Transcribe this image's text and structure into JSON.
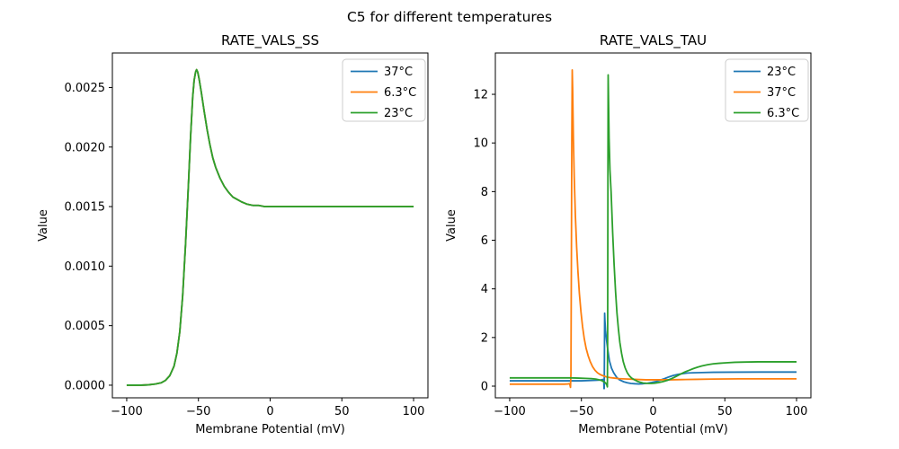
{
  "figure": {
    "title": "C5 for different temperatures",
    "background": "#ffffff"
  },
  "colors": {
    "blue": "#1f77b4",
    "orange": "#ff7f0e",
    "green": "#2ca02c",
    "legend_border": "#cccccc",
    "axes": "#000000"
  },
  "chart_data": [
    {
      "type": "line",
      "title": "RATE_VALS_SS",
      "xlabel": "Membrane Potential (mV)",
      "ylabel": "Value",
      "xlim": [
        -110,
        110
      ],
      "ylim": [
        -0.000106,
        0.00279
      ],
      "grid": false,
      "legend_position": "upper-right",
      "xticks": {
        "values": [
          -100,
          -50,
          0,
          50,
          100
        ],
        "labels": [
          "−100",
          "−50",
          "0",
          "50",
          "100"
        ]
      },
      "yticks": {
        "values": [
          0.0,
          0.0005,
          0.001,
          0.0015,
          0.002,
          0.0025
        ],
        "labels": [
          "0.0000",
          "0.0005",
          "0.0010",
          "0.0015",
          "0.0020",
          "0.0025"
        ]
      },
      "note": "All three temperature curves coincide exactly; the green 23°C curve drawn last is the visible one. Peak ≈ 0.00265 at −51 mV, plateau ≈ 0.0015 for V ≥ −10 mV.",
      "shared_points": {
        "ss": [
          [
            -100,
            0
          ],
          [
            -90,
            0
          ],
          [
            -85,
            3e-06
          ],
          [
            -80,
            1e-05
          ],
          [
            -76,
            2e-05
          ],
          [
            -73,
            4e-05
          ],
          [
            -70,
            8e-05
          ],
          [
            -67,
            0.00016
          ],
          [
            -65,
            0.00027
          ],
          [
            -63,
            0.00045
          ],
          [
            -61,
            0.00075
          ],
          [
            -59,
            0.00118
          ],
          [
            -57,
            0.00168
          ],
          [
            -55.5,
            0.00208
          ],
          [
            -54,
            0.00242
          ],
          [
            -53,
            0.00256
          ],
          [
            -52,
            0.00263
          ],
          [
            -51.3,
            0.00265
          ],
          [
            -50.5,
            0.00263
          ],
          [
            -49.5,
            0.00257
          ],
          [
            -48,
            0.00246
          ],
          [
            -46,
            0.0023
          ],
          [
            -44,
            0.00215
          ],
          [
            -42,
            0.00202
          ],
          [
            -40,
            0.00191
          ],
          [
            -38,
            0.00183
          ],
          [
            -35,
            0.00174
          ],
          [
            -32,
            0.00167
          ],
          [
            -29,
            0.00162
          ],
          [
            -26,
            0.00158
          ],
          [
            -23,
            0.00156
          ],
          [
            -20,
            0.00154
          ],
          [
            -16,
            0.00152
          ],
          [
            -12,
            0.00151
          ],
          [
            -8,
            0.00151
          ],
          [
            -4,
            0.0015
          ],
          [
            0,
            0.0015
          ],
          [
            20,
            0.0015
          ],
          [
            40,
            0.0015
          ],
          [
            60,
            0.0015
          ],
          [
            80,
            0.0015
          ],
          [
            100,
            0.0015
          ]
        ]
      },
      "series": [
        {
          "name": "37°C",
          "color": "#1f77b4",
          "points_key": "ss"
        },
        {
          "name": "6.3°C",
          "color": "#ff7f0e",
          "points_key": "ss"
        },
        {
          "name": "23°C",
          "color": "#2ca02c",
          "points_key": "ss"
        }
      ]
    },
    {
      "type": "line",
      "title": "RATE_VALS_TAU",
      "xlabel": "Membrane Potential (mV)",
      "ylabel": "Value",
      "xlim": [
        -110,
        110
      ],
      "ylim": [
        -0.48,
        13.7
      ],
      "grid": false,
      "legend_position": "upper-right",
      "xticks": {
        "values": [
          -100,
          -50,
          0,
          50,
          100
        ],
        "labels": [
          "−100",
          "−50",
          "0",
          "50",
          "100"
        ]
      },
      "yticks": {
        "values": [
          0,
          2,
          4,
          6,
          8,
          10,
          12
        ],
        "labels": [
          "0",
          "2",
          "4",
          "6",
          "8",
          "10",
          "12"
        ]
      },
      "note": "Narrow resonance spikes: orange 37°C peaks ≈ 13.0 at ≈ −56 mV; green 6.3°C peaks ≈ 12.8 at ≈ −31.4 mV; blue 23°C peaks ≈ 3.0 at ≈ −34 mV. Right-side plateaus: green ≈ 1.0, blue ≈ 0.58, orange ≈ 0.3.",
      "series": [
        {
          "name": "23°C",
          "color": "#1f77b4",
          "points": [
            [
              -100,
              0.22
            ],
            [
              -80,
              0.22
            ],
            [
              -60,
              0.22
            ],
            [
              -50,
              0.22
            ],
            [
              -44,
              0.23
            ],
            [
              -40,
              0.24
            ],
            [
              -37,
              0.25
            ],
            [
              -35.2,
              0.27
            ],
            [
              -34.4,
              0.28
            ],
            [
              -34.25,
              -0.1
            ],
            [
              -34.1,
              -0.1
            ],
            [
              -33.95,
              1.2
            ],
            [
              -33.8,
              3.0
            ],
            [
              -33.6,
              2.7
            ],
            [
              -33.2,
              2.3
            ],
            [
              -32.5,
              1.9
            ],
            [
              -31.6,
              1.5
            ],
            [
              -30.5,
              1.05
            ],
            [
              -29,
              0.74
            ],
            [
              -27.5,
              0.55
            ],
            [
              -25.5,
              0.37
            ],
            [
              -23.5,
              0.26
            ],
            [
              -20.5,
              0.18
            ],
            [
              -18,
              0.14
            ],
            [
              -15.5,
              0.11
            ],
            [
              -13,
              0.1
            ],
            [
              -10,
              0.09
            ],
            [
              -7,
              0.1
            ],
            [
              -4,
              0.12
            ],
            [
              -1,
              0.15
            ],
            [
              2,
              0.19
            ],
            [
              5,
              0.25
            ],
            [
              8,
              0.31
            ],
            [
              11,
              0.38
            ],
            [
              14,
              0.44
            ],
            [
              17,
              0.48
            ],
            [
              20,
              0.51
            ],
            [
              24,
              0.54
            ],
            [
              28,
              0.55
            ],
            [
              34,
              0.56
            ],
            [
              42,
              0.57
            ],
            [
              55,
              0.575
            ],
            [
              75,
              0.58
            ],
            [
              100,
              0.58
            ]
          ]
        },
        {
          "name": "37°C",
          "color": "#ff7f0e",
          "points": [
            [
              -100,
              0.08
            ],
            [
              -85,
              0.08
            ],
            [
              -70,
              0.08
            ],
            [
              -62,
              0.08
            ],
            [
              -59.5,
              0.09
            ],
            [
              -58.2,
              0.1
            ],
            [
              -57.6,
              -0.05
            ],
            [
              -57.3,
              0.5
            ],
            [
              -57,
              5.0
            ],
            [
              -56.7,
              10.0
            ],
            [
              -56.4,
              13.0
            ],
            [
              -56.1,
              12.2
            ],
            [
              -55.6,
              10.2
            ],
            [
              -55,
              8.6
            ],
            [
              -54.2,
              7.0
            ],
            [
              -53.3,
              5.7
            ],
            [
              -52.4,
              4.7
            ],
            [
              -51.4,
              3.8
            ],
            [
              -50.3,
              3.05
            ],
            [
              -49.2,
              2.45
            ],
            [
              -48,
              1.95
            ],
            [
              -46.7,
              1.55
            ],
            [
              -45.3,
              1.25
            ],
            [
              -43.8,
              1.0
            ],
            [
              -42.2,
              0.8
            ],
            [
              -40.5,
              0.65
            ],
            [
              -38.8,
              0.55
            ],
            [
              -37,
              0.48
            ],
            [
              -35,
              0.43
            ],
            [
              -32.5,
              0.38
            ],
            [
              -30,
              0.35
            ],
            [
              -27,
              0.33
            ],
            [
              -24,
              0.31
            ],
            [
              -21,
              0.3
            ],
            [
              -17,
              0.29
            ],
            [
              -13,
              0.28
            ],
            [
              -9,
              0.27
            ],
            [
              -5,
              0.26
            ],
            [
              0,
              0.26
            ],
            [
              6,
              0.26
            ],
            [
              12,
              0.26
            ],
            [
              20,
              0.27
            ],
            [
              30,
              0.28
            ],
            [
              42,
              0.29
            ],
            [
              60,
              0.3
            ],
            [
              80,
              0.3
            ],
            [
              100,
              0.3
            ]
          ]
        },
        {
          "name": "6.3°C",
          "color": "#2ca02c",
          "points": [
            [
              -100,
              0.34
            ],
            [
              -85,
              0.34
            ],
            [
              -70,
              0.34
            ],
            [
              -58,
              0.34
            ],
            [
              -52,
              0.33
            ],
            [
              -47,
              0.32
            ],
            [
              -43,
              0.31
            ],
            [
              -40,
              0.29
            ],
            [
              -37.5,
              0.26
            ],
            [
              -35.5,
              0.22
            ],
            [
              -34,
              0.17
            ],
            [
              -33,
              0.12
            ],
            [
              -32.3,
              0.05
            ],
            [
              -31.9,
              -0.03
            ],
            [
              -31.7,
              2.0
            ],
            [
              -31.5,
              9.0
            ],
            [
              -31.35,
              12.8
            ],
            [
              -31.1,
              11.8
            ],
            [
              -30.7,
              10.2
            ],
            [
              -30.1,
              8.9
            ],
            [
              -29.3,
              8.0
            ],
            [
              -28.2,
              6.3
            ],
            [
              -27.2,
              5.0
            ],
            [
              -26.2,
              3.9
            ],
            [
              -25.2,
              3.0
            ],
            [
              -24.2,
              2.35
            ],
            [
              -23.2,
              1.8
            ],
            [
              -22,
              1.35
            ],
            [
              -20.8,
              1.0
            ],
            [
              -19.5,
              0.75
            ],
            [
              -18,
              0.55
            ],
            [
              -16.5,
              0.42
            ],
            [
              -15,
              0.33
            ],
            [
              -13,
              0.26
            ],
            [
              -11,
              0.2
            ],
            [
              -9,
              0.16
            ],
            [
              -7,
              0.13
            ],
            [
              -5,
              0.12
            ],
            [
              -3,
              0.11
            ],
            [
              -1,
              0.11
            ],
            [
              1,
              0.12
            ],
            [
              4,
              0.15
            ],
            [
              7,
              0.19
            ],
            [
              10,
              0.24
            ],
            [
              13,
              0.31
            ],
            [
              16,
              0.4
            ],
            [
              19,
              0.49
            ],
            [
              22,
              0.58
            ],
            [
              25,
              0.65
            ],
            [
              28,
              0.72
            ],
            [
              31,
              0.78
            ],
            [
              34,
              0.83
            ],
            [
              38,
              0.88
            ],
            [
              42,
              0.92
            ],
            [
              46,
              0.94
            ],
            [
              51,
              0.96
            ],
            [
              57,
              0.98
            ],
            [
              64,
              0.99
            ],
            [
              73,
              1.0
            ],
            [
              86,
              1.0
            ],
            [
              100,
              1.0
            ]
          ]
        }
      ]
    }
  ]
}
